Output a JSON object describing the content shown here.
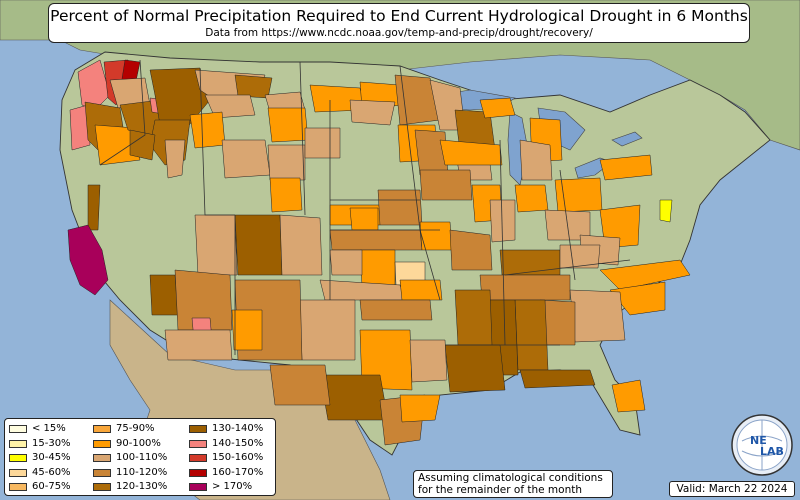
{
  "header": {
    "title": "Percent of Normal Precipitation Required to End Current Hydrological Drought in 6 Months",
    "subtitle": "Data from https://www.ncdc.noaa.gov/temp-and-precip/drought/recovery/"
  },
  "legend": {
    "items": [
      {
        "label": "< 15%",
        "color": "#fffde0"
      },
      {
        "label": "15-30%",
        "color": "#fff3a8"
      },
      {
        "label": "30-45%",
        "color": "#ffff00"
      },
      {
        "label": "45-60%",
        "color": "#fdd89a"
      },
      {
        "label": "60-75%",
        "color": "#f7b860"
      },
      {
        "label": "75-90%",
        "color": "#f8a63a"
      },
      {
        "label": "90-100%",
        "color": "#ff9b00"
      },
      {
        "label": "100-110%",
        "color": "#d9a672"
      },
      {
        "label": "110-120%",
        "color": "#c98436"
      },
      {
        "label": "120-130%",
        "color": "#ad6c08"
      },
      {
        "label": "130-140%",
        "color": "#9c5f00"
      },
      {
        "label": "140-150%",
        "color": "#f4827d"
      },
      {
        "label": "150-160%",
        "color": "#d33a2a"
      },
      {
        "label": "160-170%",
        "color": "#b40000"
      },
      {
        "label": "> 170%",
        "color": "#a8005a"
      }
    ]
  },
  "note": {
    "line1": "Assuming climatological conditions",
    "line2": "for the remainder of the month"
  },
  "valid": "Valid: March 22 2024",
  "logo": {
    "text_top": "NE",
    "text_bottom": "LAB"
  },
  "colors": {
    "ocean": "#93b4d8",
    "land": "#b9c79a",
    "canada": "#a6bb88",
    "mexico": "#c9b48a",
    "lake": "#7fa3cf"
  }
}
